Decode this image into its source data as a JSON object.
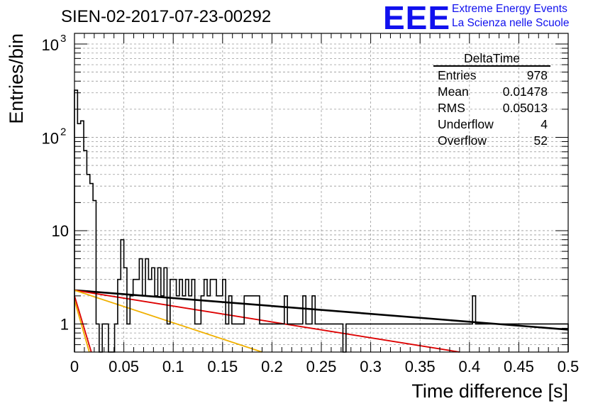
{
  "header": {
    "run_id": "SIEN-02-2017-07-23-00292",
    "logo_text": "EEE",
    "logo_line1": "Extreme Energy Events",
    "logo_line2": "La Scienza nelle Scuole",
    "logo_color": "#1111ee"
  },
  "stats": {
    "title": "DeltaTime",
    "rows": [
      {
        "label": "Entries",
        "value": "978"
      },
      {
        "label": "Mean",
        "value": "0.01478"
      },
      {
        "label": "RMS",
        "value": "0.05013"
      },
      {
        "label": "Underflow",
        "value": "4"
      },
      {
        "label": "Overflow",
        "value": "52"
      }
    ]
  },
  "chart_data": {
    "type": "histogram",
    "xlabel": "Time difference [s]",
    "ylabel": "Entries/bin",
    "x_range": [
      0,
      0.5
    ],
    "y_range": [
      0.5,
      1300
    ],
    "y_scale": "log",
    "grid": true,
    "x_ticks": [
      "0",
      "0.05",
      "0.1",
      "0.15",
      "0.2",
      "0.25",
      "0.3",
      "0.35",
      "0.4",
      "0.45",
      "0.5"
    ],
    "y_ticks": [
      {
        "value": 1,
        "label": "1"
      },
      {
        "value": 10,
        "label": "10"
      },
      {
        "value": 100,
        "label": "10",
        "exp": "2"
      },
      {
        "value": 1000,
        "label": "10",
        "exp": "3"
      }
    ],
    "bin_width": 0.003125,
    "histogram": {
      "name": "DeltaTime",
      "color": "#000000",
      "values": [
        320,
        140,
        150,
        72,
        40,
        32,
        21,
        1,
        0,
        1,
        1,
        0,
        0,
        1,
        3,
        8,
        4,
        1,
        2,
        3,
        3,
        5,
        2,
        5,
        3,
        4,
        2,
        4,
        2,
        4,
        1,
        3,
        3,
        2,
        3,
        2,
        3,
        2,
        3,
        1,
        1,
        2,
        3,
        2,
        3,
        3,
        2,
        2,
        3,
        1,
        2,
        1,
        1,
        1,
        1,
        2,
        2,
        2,
        2,
        2,
        1,
        1,
        1,
        1,
        1,
        1,
        1,
        1,
        2,
        1,
        1,
        1,
        1,
        1,
        2,
        1,
        1,
        2,
        1,
        1,
        1,
        1,
        1,
        1,
        1,
        1,
        1,
        0,
        1,
        1,
        1,
        1,
        1,
        1,
        1,
        1,
        1,
        1,
        1,
        1,
        1,
        1,
        1,
        1,
        1,
        1,
        1,
        1,
        1,
        1,
        1,
        1,
        1,
        1,
        1,
        1,
        1,
        1,
        1,
        1,
        1,
        1,
        1,
        1,
        1,
        1,
        1,
        1,
        1,
        2,
        1,
        1,
        1,
        1,
        1,
        1,
        1,
        1,
        1,
        1,
        1,
        1,
        1,
        1,
        1,
        1,
        1,
        1,
        1,
        1,
        1,
        1,
        1,
        1,
        1,
        1,
        1,
        1,
        1,
        1,
        0
      ]
    },
    "fit_curves": [
      {
        "color": "#000000",
        "x": [
          0,
          0.5
        ],
        "y": [
          2.3,
          0.87
        ]
      },
      {
        "color": "#dd0000",
        "x": [
          0,
          0.39
        ],
        "y": [
          2.3,
          0.5
        ]
      },
      {
        "color": "#f0b000",
        "x": [
          0,
          0.19
        ],
        "y": [
          2.3,
          0.5
        ]
      },
      {
        "color": "#dd0000",
        "x": [
          0,
          0.017
        ],
        "y": [
          2.0,
          0.5
        ]
      },
      {
        "color": "#f0b000",
        "x": [
          0,
          0.015
        ],
        "y": [
          1.8,
          0.5
        ]
      }
    ]
  }
}
